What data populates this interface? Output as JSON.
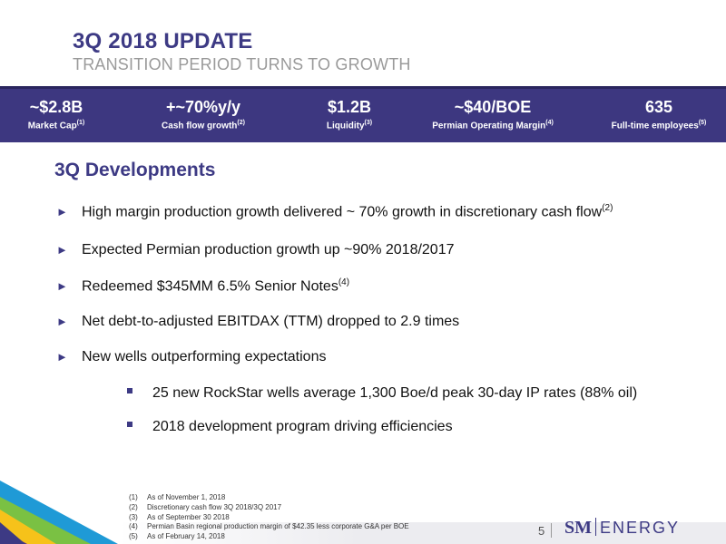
{
  "header": {
    "title": "3Q 2018 UPDATE",
    "subtitle": "TRANSITION PERIOD TURNS TO GROWTH"
  },
  "stats": [
    {
      "value": "~$2.8B",
      "label": "Market Cap",
      "note": "(1)"
    },
    {
      "value": "+~70%y/y",
      "label": "Cash flow growth",
      "note": "(2)"
    },
    {
      "value": "$1.2B",
      "label": "Liquidity",
      "note": "(3)"
    },
    {
      "value": "~$40/BOE",
      "label": "Permian Operating Margin",
      "note": "(4)"
    },
    {
      "value": "635",
      "label": "Full-time employees",
      "note": "(5)"
    }
  ],
  "section_title": "3Q Developments",
  "bullets": [
    {
      "text": "High margin production growth delivered ~ 70% growth in discretionary cash flow",
      "note": "(2)"
    },
    {
      "text": "Expected Permian production growth up ~90% 2018/2017",
      "note": ""
    },
    {
      "text": "Redeemed $345MM 6.5% Senior Notes",
      "note": "(4)"
    },
    {
      "text": "Net debt-to-adjusted EBITDAX (TTM) dropped to 2.9 times",
      "note": ""
    },
    {
      "text": "New wells outperforming expectations",
      "note": ""
    }
  ],
  "sub_bullets": [
    "25 new RockStar wells average 1,300 Boe/d peak 30-day IP rates (88% oil)",
    "2018 development program driving efficiencies"
  ],
  "footnotes": [
    {
      "num": "(1)",
      "text": "As of November 1, 2018"
    },
    {
      "num": "(2)",
      "text": "Discretionary cash flow 3Q 2018/3Q 2017"
    },
    {
      "num": "(3)",
      "text": "As of  September 30 2018"
    },
    {
      "num": "(4)",
      "text": "Permian Basin regional production margin of $42.35 less corporate G&A per BOE"
    },
    {
      "num": "(5)",
      "text": "As of February 14, 2018"
    }
  ],
  "footer": {
    "page_number": "5",
    "logo_sm": "SM",
    "logo_energy": "ENERGY"
  },
  "colors": {
    "brand_purple": "#3d3a84",
    "band": "#3d3780"
  }
}
